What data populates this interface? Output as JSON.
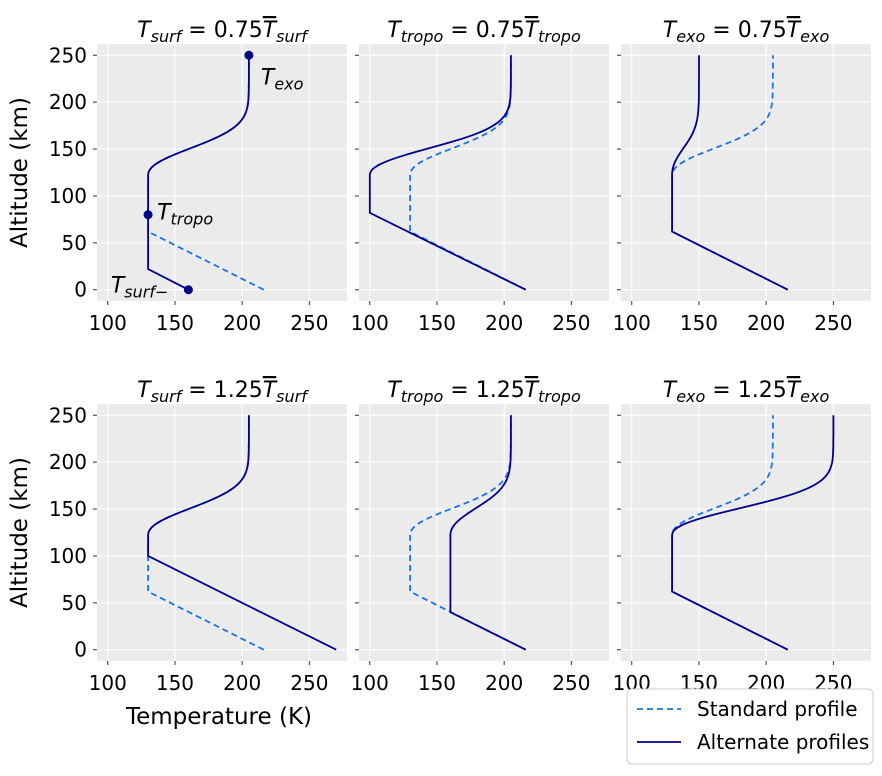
{
  "figure": {
    "ylabel": "Altitude (km)",
    "xlabel": "Temperature (K)",
    "legend": {
      "position": "bottom-right",
      "entries": [
        {
          "label": "Standard profile",
          "style": "dashed",
          "color": "#1a73e8"
        },
        {
          "label": "Alternate profiles",
          "style": "solid",
          "color": "#00008b"
        }
      ]
    },
    "grid": true,
    "background": "#ebebeb"
  },
  "chart_data": [
    {
      "type": "line",
      "title": {
        "base": "T",
        "sub": "surf",
        "eq": " = 0.75",
        "sub2": "surf"
      },
      "xlim": [
        92,
        278
      ],
      "ylim": [
        -12,
        262
      ],
      "xticks": [
        100,
        150,
        200,
        250
      ],
      "yticks": [
        0,
        50,
        100,
        150,
        200,
        250
      ],
      "series": [
        {
          "role": "standard",
          "points": [
            [
              216,
              0
            ],
            [
              130,
              62
            ],
            [
              130,
              122
            ],
            [
              205,
              250
            ]
          ]
        },
        {
          "role": "alternate",
          "points": [
            [
              160,
              0
            ],
            [
              130,
              22
            ],
            [
              130,
              122
            ],
            [
              205,
              250
            ]
          ]
        }
      ],
      "markers": [
        {
          "x": 205,
          "y": 250,
          "label": "T",
          "sub": "exo",
          "pos": "right-below"
        },
        {
          "x": 130,
          "y": 80,
          "label": "T",
          "sub": "tropo",
          "pos": "right"
        },
        {
          "x": 160,
          "y": 0,
          "label": "T",
          "sub": "surf−",
          "pos": "left"
        }
      ]
    },
    {
      "type": "line",
      "title": {
        "base": "T",
        "sub": "tropo",
        "eq": " = 0.75",
        "sub2": "tropo"
      },
      "xlim": [
        92,
        278
      ],
      "ylim": [
        -12,
        262
      ],
      "xticks": [
        100,
        150,
        200,
        250
      ],
      "yticks": [
        0,
        50,
        100,
        150,
        200,
        250
      ],
      "series": [
        {
          "role": "standard",
          "points": [
            [
              216,
              0
            ],
            [
              130,
              62
            ],
            [
              130,
              122
            ],
            [
              205,
              250
            ]
          ]
        },
        {
          "role": "alternate",
          "points": [
            [
              216,
              0
            ],
            [
              100,
              82
            ],
            [
              100,
              122
            ],
            [
              205,
              250
            ]
          ]
        }
      ]
    },
    {
      "type": "line",
      "title": {
        "base": "T",
        "sub": "exo",
        "eq": " = 0.75",
        "sub2": "exo"
      },
      "xlim": [
        92,
        278
      ],
      "ylim": [
        -12,
        262
      ],
      "xticks": [
        100,
        150,
        200,
        250
      ],
      "yticks": [
        0,
        50,
        100,
        150,
        200,
        250
      ],
      "series": [
        {
          "role": "standard",
          "points": [
            [
              216,
              0
            ],
            [
              130,
              62
            ],
            [
              130,
              122
            ],
            [
              205,
              250
            ]
          ]
        },
        {
          "role": "alternate",
          "points": [
            [
              216,
              0
            ],
            [
              130,
              62
            ],
            [
              130,
              122
            ],
            [
              150,
              250
            ]
          ]
        }
      ]
    },
    {
      "type": "line",
      "title": {
        "base": "T",
        "sub": "surf",
        "eq": " = 1.25",
        "sub2": "surf"
      },
      "xlim": [
        92,
        278
      ],
      "ylim": [
        -12,
        262
      ],
      "xticks": [
        100,
        150,
        200,
        250
      ],
      "yticks": [
        0,
        50,
        100,
        150,
        200,
        250
      ],
      "series": [
        {
          "role": "standard",
          "points": [
            [
              216,
              0
            ],
            [
              130,
              62
            ],
            [
              130,
              122
            ],
            [
              205,
              250
            ]
          ]
        },
        {
          "role": "alternate",
          "points": [
            [
              270,
              0
            ],
            [
              130,
              100
            ],
            [
              130,
              122
            ],
            [
              205,
              250
            ]
          ]
        }
      ]
    },
    {
      "type": "line",
      "title": {
        "base": "T",
        "sub": "tropo",
        "eq": " = 1.25",
        "sub2": "tropo"
      },
      "xlim": [
        92,
        278
      ],
      "ylim": [
        -12,
        262
      ],
      "xticks": [
        100,
        150,
        200,
        250
      ],
      "yticks": [
        0,
        50,
        100,
        150,
        200,
        250
      ],
      "series": [
        {
          "role": "standard",
          "points": [
            [
              216,
              0
            ],
            [
              130,
              62
            ],
            [
              130,
              122
            ],
            [
              205,
              250
            ]
          ]
        },
        {
          "role": "alternate",
          "points": [
            [
              216,
              0
            ],
            [
              160,
              40
            ],
            [
              160,
              122
            ],
            [
              205,
              250
            ]
          ]
        }
      ]
    },
    {
      "type": "line",
      "title": {
        "base": "T",
        "sub": "exo",
        "eq": " = 1.25",
        "sub2": "exo"
      },
      "xlim": [
        92,
        278
      ],
      "ylim": [
        -12,
        262
      ],
      "xticks": [
        100,
        150,
        200,
        250
      ],
      "yticks": [
        0,
        50,
        100,
        150,
        200,
        250
      ],
      "series": [
        {
          "role": "standard",
          "points": [
            [
              216,
              0
            ],
            [
              130,
              62
            ],
            [
              130,
              122
            ],
            [
              205,
              250
            ]
          ]
        },
        {
          "role": "alternate",
          "points": [
            [
              216,
              0
            ],
            [
              130,
              62
            ],
            [
              130,
              122
            ],
            [
              250,
              250
            ]
          ]
        }
      ]
    }
  ]
}
